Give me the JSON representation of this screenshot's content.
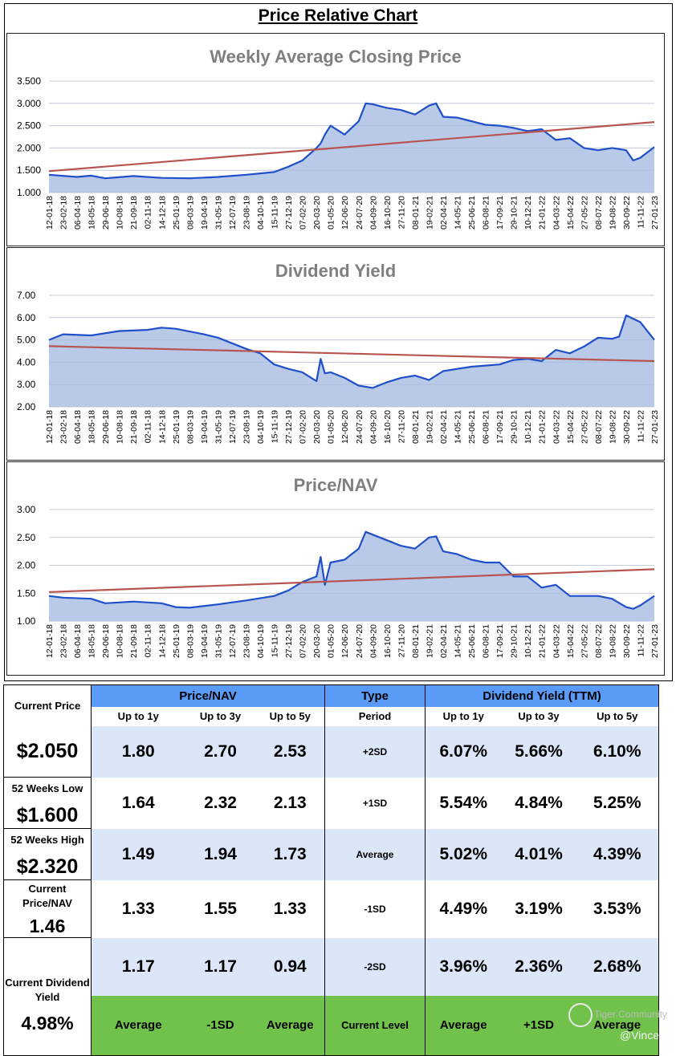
{
  "page_title": "Price Relative Chart",
  "chart_data": [
    {
      "type": "area",
      "title": "Weekly Average Closing Price",
      "ylim": [
        1.0,
        3.5
      ],
      "yticks": [
        "1.000",
        "1.500",
        "2.000",
        "2.500",
        "3.000",
        "3.500"
      ],
      "ytick_values": [
        1.0,
        1.5,
        2.0,
        2.5,
        3.0,
        3.5
      ],
      "x_labels": [
        "12-01-18",
        "23-02-18",
        "06-04-18",
        "18-05-18",
        "29-06-18",
        "10-08-18",
        "21-09-18",
        "02-11-18",
        "14-12-18",
        "25-01-19",
        "08-03-19",
        "19-04-19",
        "31-05-19",
        "12-07-19",
        "23-08-19",
        "04-10-19",
        "15-11-19",
        "27-12-19",
        "07-02-20",
        "20-03-20",
        "01-05-20",
        "12-06-20",
        "24-07-20",
        "04-09-20",
        "16-10-20",
        "27-11-20",
        "08-01-21",
        "19-02-21",
        "02-04-21",
        "14-05-21",
        "25-06-21",
        "06-08-21",
        "17-09-21",
        "29-10-21",
        "10-12-21",
        "21-01-22",
        "04-03-22",
        "15-04-22",
        "27-05-22",
        "08-07-22",
        "19-08-22",
        "30-09-22",
        "11-11-22",
        "27-01-23"
      ],
      "series": [
        {
          "name": "price",
          "x": [
            0,
            2,
            3,
            4,
            6,
            8,
            10,
            12,
            14,
            16,
            17,
            18,
            19,
            19.3,
            19.6,
            20,
            21,
            22,
            22.5,
            23,
            24,
            25,
            26,
            27,
            27.5,
            28,
            29,
            30,
            31,
            32,
            33,
            34,
            35,
            36,
            37,
            38,
            39,
            40,
            41,
            41.5,
            42,
            43
          ],
          "values": [
            1.4,
            1.35,
            1.38,
            1.32,
            1.37,
            1.33,
            1.32,
            1.35,
            1.4,
            1.46,
            1.58,
            1.72,
            2.0,
            2.1,
            2.3,
            2.5,
            2.3,
            2.6,
            3.0,
            2.98,
            2.9,
            2.85,
            2.75,
            2.95,
            3.0,
            2.7,
            2.68,
            2.6,
            2.52,
            2.5,
            2.45,
            2.38,
            2.42,
            2.18,
            2.22,
            2.0,
            1.95,
            2.0,
            1.95,
            1.72,
            1.78,
            2.02
          ]
        },
        {
          "name": "trend",
          "x": [
            0,
            43
          ],
          "values": [
            1.48,
            2.58
          ]
        }
      ]
    },
    {
      "type": "area",
      "title": "Dividend Yield",
      "ylim": [
        2.0,
        7.0
      ],
      "yticks": [
        "2.00",
        "3.00",
        "4.00",
        "5.00",
        "6.00",
        "7.00"
      ],
      "ytick_values": [
        2,
        3,
        4,
        5,
        6,
        7
      ],
      "x_labels": [
        "12-01-18",
        "23-02-18",
        "06-04-18",
        "18-05-18",
        "29-06-18",
        "10-08-18",
        "21-09-18",
        "02-11-18",
        "14-12-18",
        "25-01-19",
        "08-03-19",
        "19-04-19",
        "31-05-19",
        "12-07-19",
        "23-08-19",
        "04-10-19",
        "15-11-19",
        "27-12-19",
        "07-02-20",
        "20-03-20",
        "01-05-20",
        "12-06-20",
        "24-07-20",
        "04-09-20",
        "16-10-20",
        "27-11-20",
        "08-01-21",
        "19-02-21",
        "02-04-21",
        "14-05-21",
        "25-06-21",
        "06-08-21",
        "17-09-21",
        "29-10-21",
        "10-12-21",
        "21-01-22",
        "04-03-22",
        "15-04-22",
        "27-05-22",
        "08-07-22",
        "19-08-22",
        "30-09-22",
        "11-11-22",
        "27-01-23"
      ],
      "series": [
        {
          "name": "yield",
          "x": [
            0,
            1,
            3,
            5,
            7,
            8,
            9,
            11,
            12,
            14,
            15,
            16,
            17,
            18,
            19,
            19.3,
            19.6,
            20,
            21,
            22,
            23,
            24,
            25,
            26,
            27,
            28,
            29,
            30,
            31,
            32,
            33,
            34,
            35,
            36,
            37,
            38,
            39,
            40,
            40.5,
            41,
            42,
            43
          ],
          "values": [
            5.0,
            5.25,
            5.2,
            5.4,
            5.45,
            5.55,
            5.5,
            5.25,
            5.1,
            4.6,
            4.4,
            3.9,
            3.7,
            3.55,
            3.15,
            4.15,
            3.5,
            3.55,
            3.3,
            2.95,
            2.85,
            3.1,
            3.3,
            3.4,
            3.2,
            3.6,
            3.7,
            3.8,
            3.85,
            3.9,
            4.1,
            4.15,
            4.05,
            4.55,
            4.4,
            4.7,
            5.1,
            5.05,
            5.15,
            6.1,
            5.8,
            5.0
          ]
        },
        {
          "name": "trend",
          "x": [
            0,
            43
          ],
          "values": [
            4.72,
            4.05
          ]
        }
      ]
    },
    {
      "type": "area",
      "title": "Price/NAV",
      "ylim": [
        1.0,
        3.0
      ],
      "yticks": [
        "1.00",
        "1.50",
        "2.00",
        "2.50",
        "3.00"
      ],
      "ytick_values": [
        1.0,
        1.5,
        2.0,
        2.5,
        3.0
      ],
      "x_labels": [
        "12-01-18",
        "23-02-18",
        "06-04-18",
        "18-05-18",
        "29-06-18",
        "10-08-18",
        "21-09-18",
        "02-11-18",
        "14-12-18",
        "25-01-19",
        "08-03-19",
        "19-04-19",
        "31-05-19",
        "12-07-19",
        "23-08-19",
        "04-10-19",
        "15-11-19",
        "27-12-19",
        "07-02-20",
        "20-03-20",
        "01-05-20",
        "12-06-20",
        "24-07-20",
        "04-09-20",
        "16-10-20",
        "27-11-20",
        "08-01-21",
        "19-02-21",
        "02-04-21",
        "14-05-21",
        "25-06-21",
        "06-08-21",
        "17-09-21",
        "29-10-21",
        "10-12-21",
        "21-01-22",
        "04-03-22",
        "15-04-22",
        "27-05-22",
        "08-07-22",
        "19-08-22",
        "30-09-22",
        "11-11-22",
        "27-01-23"
      ],
      "series": [
        {
          "name": "pnav",
          "x": [
            0,
            1,
            3,
            4,
            6,
            8,
            9,
            10,
            12,
            14,
            16,
            17,
            18,
            19,
            19.3,
            19.6,
            20,
            21,
            22,
            22.5,
            23,
            24,
            25,
            26,
            27,
            27.5,
            28,
            29,
            30,
            31,
            32,
            33,
            34,
            35,
            36,
            37,
            38,
            39,
            40,
            41,
            41.5,
            42,
            43
          ],
          "values": [
            1.45,
            1.42,
            1.4,
            1.32,
            1.35,
            1.32,
            1.25,
            1.24,
            1.3,
            1.37,
            1.45,
            1.55,
            1.7,
            1.8,
            2.15,
            1.65,
            2.05,
            2.1,
            2.3,
            2.6,
            2.55,
            2.45,
            2.35,
            2.3,
            2.5,
            2.52,
            2.25,
            2.2,
            2.1,
            2.05,
            2.05,
            1.8,
            1.8,
            1.6,
            1.65,
            1.45,
            1.45,
            1.45,
            1.4,
            1.25,
            1.22,
            1.28,
            1.45
          ]
        },
        {
          "name": "trend",
          "x": [
            0,
            43
          ],
          "values": [
            1.52,
            1.93
          ]
        }
      ]
    }
  ],
  "table": {
    "left": [
      {
        "label": "Current Price",
        "value": "$2.050"
      },
      {
        "label": "52 Weeks Low",
        "value": "$1.600"
      },
      {
        "label": "52 Weeks High",
        "value": "$2.320"
      },
      {
        "label": "Current Price/NAV",
        "value": "1.46"
      },
      {
        "label": "Current Dividend Yield",
        "value": "4.98%"
      }
    ],
    "pnav_header": "Price/NAV",
    "type_header": "Type",
    "dy_header": "Dividend Yield (TTM)",
    "sub_pnav": [
      "Up to 1y",
      "Up to 3y",
      "Up to 5y"
    ],
    "sub_type": "Period",
    "sub_dy": [
      "Up to 1y",
      "Up to 3y",
      "Up to 5y"
    ],
    "rows": [
      {
        "pnav": [
          "1.80",
          "2.70",
          "2.53"
        ],
        "type": "+2SD",
        "dy": [
          "6.07%",
          "5.66%",
          "6.10%"
        ]
      },
      {
        "pnav": [
          "1.64",
          "2.32",
          "2.13"
        ],
        "type": "+1SD",
        "dy": [
          "5.54%",
          "4.84%",
          "5.25%"
        ]
      },
      {
        "pnav": [
          "1.49",
          "1.94",
          "1.73"
        ],
        "type": "Average",
        "dy": [
          "5.02%",
          "4.01%",
          "4.39%"
        ]
      },
      {
        "pnav": [
          "1.33",
          "1.55",
          "1.33"
        ],
        "type": "-1SD",
        "dy": [
          "4.49%",
          "3.19%",
          "3.53%"
        ]
      },
      {
        "pnav": [
          "1.17",
          "1.17",
          "0.94"
        ],
        "type": "-2SD",
        "dy": [
          "3.96%",
          "2.36%",
          "2.68%"
        ]
      }
    ],
    "levels": {
      "pnav": [
        "Average",
        "-1SD",
        "Average"
      ],
      "type": "Current Level",
      "dy": [
        "Average",
        "+1SD",
        "Average"
      ]
    }
  },
  "watermark": {
    "line1": "Tiger Community",
    "line2": "@Vince."
  }
}
